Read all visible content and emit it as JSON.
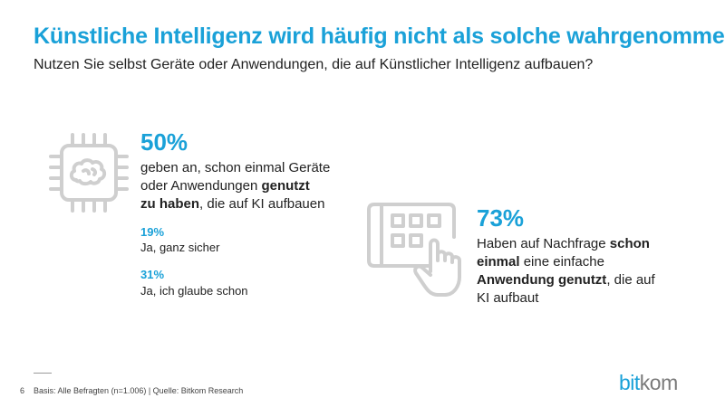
{
  "header": {
    "title": "Künstliche Intelligenz wird häufig nicht als solche wahrgenommen",
    "subtitle": "Nutzen Sie selbst Geräte oder Anwendungen, die auf Künstlicher Intelligenz aufbauen?"
  },
  "left": {
    "percent": "50%",
    "line1": "geben an, schon einmal Geräte",
    "line2_normal": "oder Anwendungen ",
    "line2_bold": "genutzt",
    "line3_bold": "zu haben",
    "line3_normal": ", die auf KI aufbauen",
    "item1_percent": "19%",
    "item1_label": "Ja, ganz sicher",
    "item2_percent": "31%",
    "item2_label": "Ja, ich glaube schon"
  },
  "right": {
    "percent": "73%",
    "line1_normal": "Haben auf Nachfrage ",
    "line1_bold": "schon",
    "line2_bold": "einmal",
    "line2_normal": " eine einfache",
    "line3_bold": "Anwendung genutzt",
    "line3_normal": ", die auf",
    "line4": "KI aufbaut"
  },
  "footer": {
    "page_number": "6",
    "source": "Basis: Alle Befragten (n=1.006) | Quelle: Bitkom Research"
  },
  "logo": {
    "part1": "bit",
    "part2": "kom"
  },
  "icons": {
    "left": "ai-chip-brain-icon",
    "right": "touch-tablet-icon"
  },
  "colors": {
    "accent": "#1aa1d8",
    "text": "#222222",
    "icon": "#cfcfcf",
    "logo_gray": "#7a7a7a"
  }
}
